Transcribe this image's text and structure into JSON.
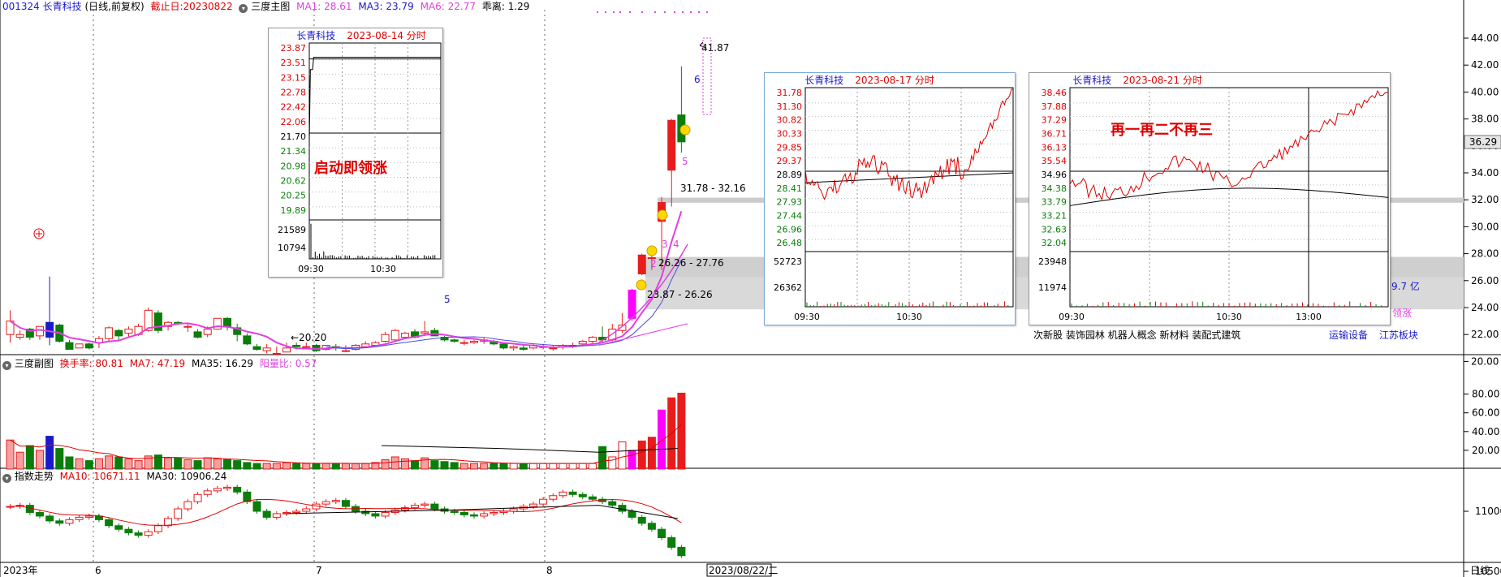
{
  "header": {
    "code_name": "001324 长青科技",
    "period": "(日线,前复权)",
    "cutoff": "截止日:20230822",
    "main_chart_name": "三度主图",
    "ma1": "MA1: 28.61",
    "ma3": "MA3: 23.79",
    "ma6": "MA6: 22.77",
    "deviation": "乖离: 1.29"
  },
  "sub1_header": {
    "name": "三度副图",
    "turnover": "换手率: 80.81",
    "ma7": "MA7: 47.19",
    "ma35": "MA35: 16.29",
    "yang_ratio": "阳量比: 0.57"
  },
  "sub2_header": {
    "name": "指数走势",
    "ma10": "MA10: 10671.11",
    "ma30": "MA30: 10906.24"
  },
  "price_axis": [
    "44.00",
    "42.00",
    "40.00",
    "38.00",
    "36.00",
    "34.00",
    "32.00",
    "30.00",
    "28.00",
    "26.00",
    "24.00",
    "22.00",
    "20.00"
  ],
  "current_price": "36.29",
  "vol_axis": [
    "80.00",
    "60.00",
    "40.00",
    "20.00"
  ],
  "index_axis": [
    "11000",
    "10500"
  ],
  "x_labels": [
    "2023年",
    "6",
    "7",
    "8"
  ],
  "x_current": "2023/08/22/二",
  "x_right": "日线",
  "annotations": {
    "low": "20.20",
    "high": "41.87",
    "zone1": "23.87 - 26.26",
    "zone2": "26.26 - 27.76",
    "zone3": "31.78 - 32.16",
    "n5a": "5",
    "n2": "2",
    "n3": "3",
    "n4": "4",
    "n5b": "5",
    "n6": "6",
    "amount": "9.7 亿",
    "lead": "领涨"
  },
  "tags": [
    "次新股",
    "装饰园林",
    "机器人概念",
    "新材料",
    "装配式建筑"
  ],
  "tags_right": [
    "运输设备",
    "江苏板块"
  ],
  "panels": [
    {
      "title_name": "长青科技",
      "title_date": "2023-08-14 分时",
      "price_labels": [
        "23.87",
        "23.51",
        "23.15",
        "22.78",
        "22.42",
        "22.06",
        "21.70",
        "21.34",
        "20.98",
        "20.62",
        "20.25",
        "19.89"
      ],
      "vol_labels": [
        "21589",
        "10794"
      ],
      "time_labels": [
        "09:30",
        "10:30"
      ],
      "caption": "启动即领涨"
    },
    {
      "title_name": "长青科技",
      "title_date": "2023-08-17 分时",
      "price_labels": [
        "31.78",
        "31.30",
        "30.82",
        "30.33",
        "29.85",
        "29.37",
        "28.89",
        "28.41",
        "27.93",
        "27.44",
        "26.96",
        "26.48"
      ],
      "vol_labels": [
        "52723",
        "26362"
      ],
      "time_labels": [
        "09:30",
        "10:30"
      ],
      "caption": ""
    },
    {
      "title_name": "长青科技",
      "title_date": "2023-08-21 分时",
      "price_labels": [
        "38.46",
        "37.88",
        "37.29",
        "36.71",
        "36.13",
        "35.54",
        "34.96",
        "34.38",
        "33.79",
        "33.21",
        "32.63",
        "32.04"
      ],
      "vol_labels": [
        "23948",
        "11974"
      ],
      "time_labels": [
        "09:30",
        "10:30",
        "13:00"
      ],
      "caption": "再一再二不再三"
    }
  ],
  "chart_data": {
    "type": "candlestick",
    "title": "001324 长青科技 (日线,前复权)",
    "price_ylim": [
      19,
      45
    ],
    "candles_ohlc": [
      [
        22.0,
        23.8,
        21.4,
        23.0
      ],
      [
        21.8,
        22.3,
        21.6,
        22.0
      ],
      [
        22.4,
        22.5,
        21.6,
        21.8
      ],
      [
        21.9,
        22.5,
        21.6,
        22.6
      ],
      [
        22.9,
        26.3,
        21.2,
        21.8
      ],
      [
        22.7,
        22.8,
        21.4,
        21.5
      ],
      [
        21.4,
        21.6,
        20.9,
        20.9
      ],
      [
        21.0,
        21.3,
        21.0,
        21.3
      ],
      [
        21.3,
        21.4,
        20.9,
        21.0
      ],
      [
        21.4,
        21.9,
        21.0,
        21.7
      ],
      [
        21.7,
        22.6,
        21.5,
        22.5
      ],
      [
        22.3,
        22.4,
        21.6,
        21.9
      ],
      [
        22.1,
        22.6,
        21.8,
        22.4
      ],
      [
        22.0,
        22.8,
        21.9,
        22.6
      ],
      [
        22.3,
        24.0,
        22.2,
        23.8
      ],
      [
        23.6,
        23.8,
        22.1,
        22.3
      ],
      [
        22.6,
        23.0,
        22.3,
        22.9
      ],
      [
        22.9,
        23.0,
        22.7,
        22.8
      ],
      [
        22.6,
        22.8,
        22.2,
        22.6
      ],
      [
        22.2,
        22.4,
        21.7,
        21.8
      ],
      [
        22.0,
        22.6,
        21.8,
        22.4
      ],
      [
        22.4,
        23.0,
        22.4,
        23.2
      ],
      [
        23.2,
        23.3,
        22.3,
        22.6
      ],
      [
        22.5,
        22.8,
        21.5,
        22.0
      ],
      [
        21.9,
        22.1,
        21.2,
        21.3
      ],
      [
        21.1,
        21.3,
        20.8,
        20.9
      ],
      [
        20.8,
        21.3,
        20.6,
        21.0
      ],
      [
        20.6,
        21.1,
        20.5,
        20.6
      ],
      [
        20.7,
        21.4,
        20.7,
        21.0
      ],
      [
        21.2,
        21.4,
        20.9,
        21.1
      ],
      [
        21.1,
        21.4,
        21.0,
        21.1
      ],
      [
        21.2,
        21.3,
        20.7,
        20.8
      ],
      [
        20.9,
        21.2,
        20.8,
        21.2
      ],
      [
        21.1,
        21.3,
        20.8,
        21.0
      ],
      [
        20.8,
        21.2,
        20.7,
        20.8
      ],
      [
        20.9,
        21.3,
        20.8,
        21.2
      ],
      [
        21.1,
        21.5,
        21.0,
        21.3
      ],
      [
        21.2,
        21.5,
        21.1,
        21.4
      ],
      [
        21.5,
        22.2,
        21.4,
        22.0
      ],
      [
        21.6,
        22.4,
        21.6,
        22.3
      ],
      [
        21.8,
        22.2,
        21.7,
        22.1
      ],
      [
        22.2,
        22.4,
        21.7,
        21.8
      ],
      [
        22.1,
        23.0,
        21.9,
        22.2
      ],
      [
        22.3,
        22.5,
        21.9,
        21.9
      ],
      [
        21.8,
        21.9,
        21.5,
        21.6
      ],
      [
        21.6,
        21.7,
        21.4,
        21.5
      ],
      [
        21.4,
        21.6,
        21.2,
        21.4
      ],
      [
        21.4,
        21.6,
        21.3,
        21.5
      ],
      [
        21.5,
        21.8,
        21.3,
        21.6
      ],
      [
        21.5,
        21.6,
        21.2,
        21.3
      ],
      [
        21.3,
        21.4,
        20.9,
        21.0
      ],
      [
        21.0,
        21.2,
        20.8,
        21.1
      ],
      [
        21.0,
        21.2,
        20.8,
        20.9
      ],
      [
        21.0,
        21.3,
        20.9,
        21.2
      ],
      [
        21.1,
        21.3,
        20.9,
        21.1
      ],
      [
        21.0,
        21.2,
        20.8,
        21.0
      ],
      [
        21.1,
        21.3,
        20.9,
        21.2
      ],
      [
        21.2,
        21.4,
        21.0,
        21.2
      ],
      [
        21.3,
        21.6,
        21.2,
        21.5
      ],
      [
        21.5,
        21.9,
        21.3,
        21.8
      ],
      [
        21.8,
        22.6,
        21.4,
        21.6
      ],
      [
        21.6,
        22.8,
        21.5,
        22.4
      ],
      [
        22.3,
        23.6,
        22.1,
        22.7
      ],
      [
        23.2,
        25.4,
        23.0,
        25.3
      ],
      [
        26.5,
        28.0,
        26.4,
        27.9
      ],
      [
        27.7,
        28.0,
        26.8,
        27.7
      ],
      [
        30.4,
        32.2,
        26.8,
        31.8
      ],
      [
        34.2,
        38.0,
        31.5,
        37.9
      ],
      [
        38.3,
        41.9,
        35.5,
        36.3
      ]
    ],
    "volume_ylim": [
      0,
      90
    ],
    "volume": [
      31,
      18,
      25,
      20,
      35,
      22,
      13,
      11,
      9,
      11,
      14,
      13,
      11,
      9,
      14,
      15,
      12,
      12,
      10,
      9,
      12,
      11,
      10,
      9,
      7,
      6,
      6,
      6,
      7,
      6,
      6,
      6,
      6,
      6,
      6,
      6,
      6,
      7,
      10,
      13,
      11,
      9,
      12,
      9,
      8,
      7,
      6,
      6,
      6,
      6,
      6,
      6,
      6,
      6,
      6,
      6,
      6,
      6,
      6,
      6,
      24,
      13,
      29,
      20,
      30,
      34,
      63,
      76,
      81
    ],
    "index_ylim": [
      10300,
      11400
    ],
    "index_close": [
      11040,
      11050,
      10990,
      10960,
      10920,
      10900,
      10930,
      10950,
      10960,
      10930,
      10880,
      10850,
      10820,
      10800,
      10830,
      10880,
      10940,
      11020,
      11080,
      11140,
      11170,
      11190,
      11200,
      11160,
      11080,
      11000,
      10950,
      10980,
      10990,
      11000,
      11020,
      11060,
      11080,
      11090,
      11040,
      11000,
      10980,
      10960,
      10990,
      11010,
      11030,
      11050,
      11060,
      11020,
      11000,
      10990,
      10970,
      10960,
      10980,
      10990,
      11000,
      11020,
      11040,
      11060,
      11100,
      11130,
      11160,
      11140,
      11120,
      11100,
      11080,
      11050,
      11000,
      10950,
      10900,
      10850,
      10780,
      10700,
      10630
    ],
    "ma_price": {
      "MA1": 28.61,
      "MA3": 23.79,
      "MA6": 22.77
    },
    "legend": "top-left",
    "xlabel": "",
    "ylabel": ""
  },
  "colors": {
    "up": "#e81c1c",
    "down": "#0a7d0a",
    "ma_magenta": "#e040e0",
    "ma_blue": "#4a4ae0",
    "zone_gray": "#cfcfcf",
    "title_blue": "#1a1acc"
  }
}
